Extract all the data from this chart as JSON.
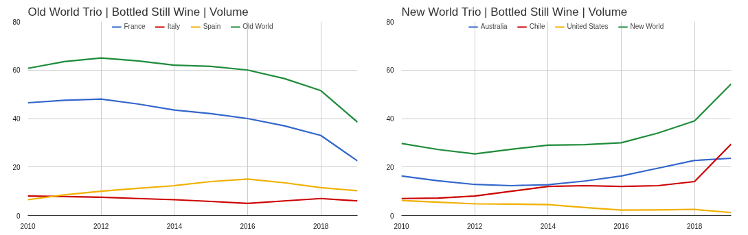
{
  "chart_data": [
    {
      "type": "line",
      "title": "Old World Trio | Bottled Still Wine | Volume",
      "x": [
        2010,
        2011,
        2012,
        2013,
        2014,
        2015,
        2016,
        2017,
        2018,
        2019
      ],
      "xlim": [
        2010,
        2019
      ],
      "xticks": [
        2010,
        2012,
        2014,
        2016,
        2018
      ],
      "ylim": [
        0,
        80
      ],
      "yticks": [
        0,
        20,
        40,
        60,
        80
      ],
      "grid": true,
      "legend": "top",
      "series": [
        {
          "name": "France",
          "color": "#3366cc",
          "values": [
            46.5,
            47.5,
            48,
            46,
            43.5,
            42,
            40,
            37,
            33,
            22.5
          ]
        },
        {
          "name": "Italy",
          "color": "#cc0000",
          "values": [
            8,
            7.8,
            7.5,
            7,
            6.5,
            5.8,
            5,
            6,
            7,
            6
          ]
        },
        {
          "name": "Spain",
          "color": "#f1b000",
          "values": [
            6.5,
            8.5,
            10,
            11.2,
            12.3,
            14,
            15,
            13.5,
            11.5,
            10.2
          ]
        },
        {
          "name": "Old World",
          "color": "#1e8c3a",
          "values": [
            60.7,
            63.5,
            65,
            63.8,
            62,
            61.5,
            60,
            56.5,
            51.5,
            38.5
          ]
        }
      ]
    },
    {
      "type": "line",
      "title": "New World Trio | Bottled Still Wine | Volume",
      "x": [
        2010,
        2011,
        2012,
        2013,
        2014,
        2015,
        2016,
        2017,
        2018,
        2019
      ],
      "xlim": [
        2010,
        2019
      ],
      "xticks": [
        2010,
        2012,
        2014,
        2016,
        2018
      ],
      "ylim": [
        0,
        80
      ],
      "yticks": [
        0,
        20,
        40,
        60,
        80
      ],
      "grid": true,
      "legend": "top",
      "series": [
        {
          "name": "Australia",
          "color": "#3366cc",
          "values": [
            16.3,
            14.3,
            12.8,
            12.3,
            12.7,
            14.2,
            16.3,
            19.5,
            22.7,
            23.6
          ]
        },
        {
          "name": "Chile",
          "color": "#cc0000",
          "values": [
            7,
            7.2,
            8,
            10,
            12,
            12.3,
            12,
            12.3,
            14,
            29.5
          ]
        },
        {
          "name": "United States",
          "color": "#f1b000",
          "values": [
            6.2,
            5.5,
            4.8,
            4.7,
            4.5,
            3.3,
            2.2,
            2.3,
            2.5,
            1.2
          ]
        },
        {
          "name": "New World",
          "color": "#1e8c3a",
          "values": [
            29.7,
            27.2,
            25.4,
            27.3,
            29,
            29.2,
            30,
            34,
            39,
            54.3
          ]
        }
      ]
    }
  ]
}
